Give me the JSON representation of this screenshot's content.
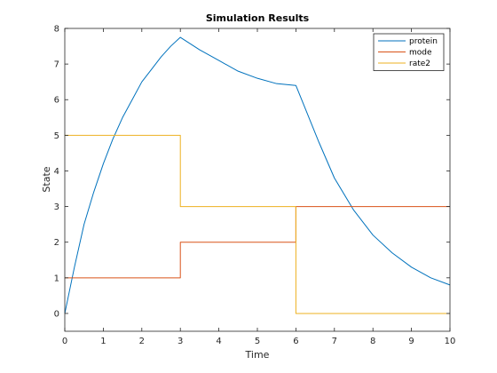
{
  "chart_data": {
    "type": "line",
    "title": "Simulation Results",
    "xlabel": "Time",
    "ylabel": "State",
    "xlim": [
      0,
      10
    ],
    "ylim": [
      -0.5,
      8
    ],
    "xticks": [
      "0",
      "1",
      "2",
      "3",
      "4",
      "5",
      "6",
      "7",
      "8",
      "9",
      "10"
    ],
    "yticks": [
      "0",
      "1",
      "2",
      "3",
      "4",
      "5",
      "6",
      "7",
      "8"
    ],
    "grid": false,
    "legend_position": "top-right",
    "series": [
      {
        "name": "protein",
        "color": "#0072BD",
        "step": false,
        "x": [
          0,
          0.25,
          0.5,
          0.75,
          1.0,
          1.25,
          1.5,
          1.75,
          2.0,
          2.25,
          2.5,
          2.75,
          3.0,
          3.5,
          4.0,
          4.5,
          5.0,
          5.5,
          6.0,
          6.3,
          6.6,
          7.0,
          7.5,
          8.0,
          8.5,
          9.0,
          9.5,
          10.0
        ],
        "y": [
          0.0,
          1.3,
          2.5,
          3.4,
          4.2,
          4.9,
          5.5,
          6.0,
          6.5,
          6.85,
          7.2,
          7.5,
          7.75,
          7.4,
          7.1,
          6.8,
          6.6,
          6.45,
          6.4,
          5.6,
          4.8,
          3.8,
          2.9,
          2.2,
          1.7,
          1.3,
          1.0,
          0.8
        ]
      },
      {
        "name": "mode",
        "color": "#D95319",
        "step": true,
        "x": [
          0,
          3,
          3,
          6,
          6,
          10
        ],
        "y": [
          1,
          1,
          2,
          2,
          3,
          3
        ]
      },
      {
        "name": "rate2",
        "color": "#EDB120",
        "step": true,
        "x": [
          0,
          3,
          3,
          6,
          6,
          10
        ],
        "y": [
          5,
          5,
          3,
          3,
          0,
          0
        ]
      }
    ]
  }
}
